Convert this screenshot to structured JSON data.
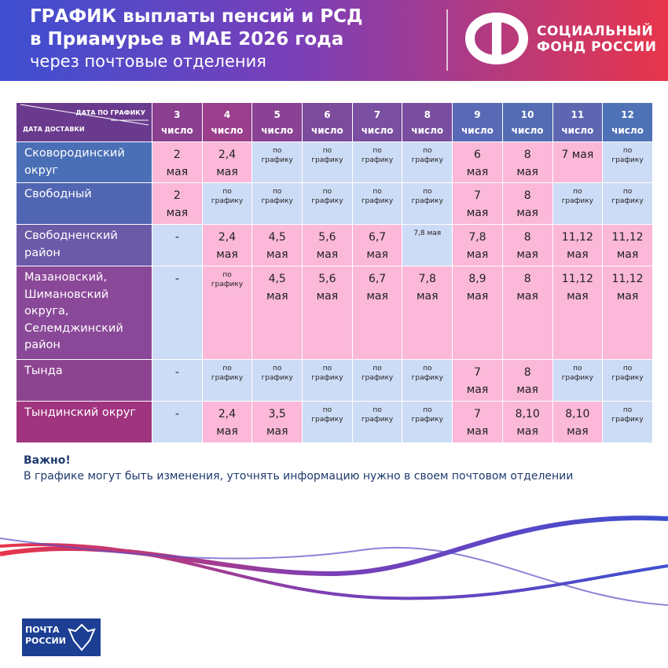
{
  "header": {
    "title_line1": "ГРАФИК выплаты пенсий и РСД",
    "title_line2": "в Приамурье в МАЕ 2026 года",
    "subtitle": "через почтовые отделения",
    "logo_line1": "СОЦИАЛЬНЫЙ",
    "logo_line2": "ФОНД РОССИИ"
  },
  "table": {
    "corner_top": "ДАТА ПО ГРАФИКУ",
    "corner_bottom": "ДАТА ДОСТАВКИ",
    "columns": [
      "3\nчисло",
      "4\nчисло",
      "5\nчисло",
      "6\nчисло",
      "7\nчисло",
      "8\nчисло",
      "9\nчисло",
      "10\nчисло",
      "11\nчисло",
      "12\nчисло"
    ],
    "rows": [
      {
        "label": "Сковородинский\nокруг",
        "cells": [
          "2\nмая",
          "2,4\nмая",
          "по\nграфику",
          "по\nграфику",
          "по\nграфику",
          "по\nграфику",
          "6\nмая",
          "8\nмая",
          "7 мая",
          "по\nграфику"
        ]
      },
      {
        "label": "Свободный",
        "cells": [
          "2\nмая",
          "по\nграфику",
          "по\nграфику",
          "по\nграфику",
          "по\nграфику",
          "по\nграфику",
          "7\nмая",
          "8\nмая",
          "по\nграфику",
          "по\nграфику"
        ]
      },
      {
        "label": "Свободненский\nрайон",
        "cells": [
          "-",
          "2,4\nмая",
          "4,5\nмая",
          "5,6\nмая",
          "6,7\nмая",
          "7,8 мая",
          "7,8\nмая",
          "8\nмая",
          "11,12\nмая",
          "11,12\nмая"
        ]
      },
      {
        "label": "Мазановский,\nШимановский\nокруга,\nСелемджинский\nрайон",
        "cells": [
          "-",
          "по\nграфику",
          "4,5\nмая",
          "5,6\nмая",
          "6,7\nмая",
          "7,8\nмая",
          "8,9\nмая",
          "8\nмая",
          "11,12\nмая",
          "11,12\nмая"
        ]
      },
      {
        "label": "Тында",
        "cells": [
          "-",
          "по\nграфику",
          "по\nграфику",
          "по\nграфику",
          "по\nграфику",
          "по\nграфику",
          "7\nмая",
          "8\nмая",
          "по\nграфику",
          "по\nграфику"
        ]
      },
      {
        "label": "Тындинский округ",
        "cells": [
          "-",
          "2,4\nмая",
          "3,5\nмая",
          "по\nграфику",
          "по\nграфику",
          "по\nграфику",
          "7\nмая",
          "8,10\nмая",
          "8,10\nмая",
          "по\nграфику"
        ]
      }
    ]
  },
  "note": {
    "title": "Важно!",
    "text": "В графике могут быть изменения, уточнять информацию нужно в своем почтовом отделении"
  },
  "footer": {
    "logo_line1": "ПОЧТА",
    "logo_line2": "РОССИИ"
  }
}
